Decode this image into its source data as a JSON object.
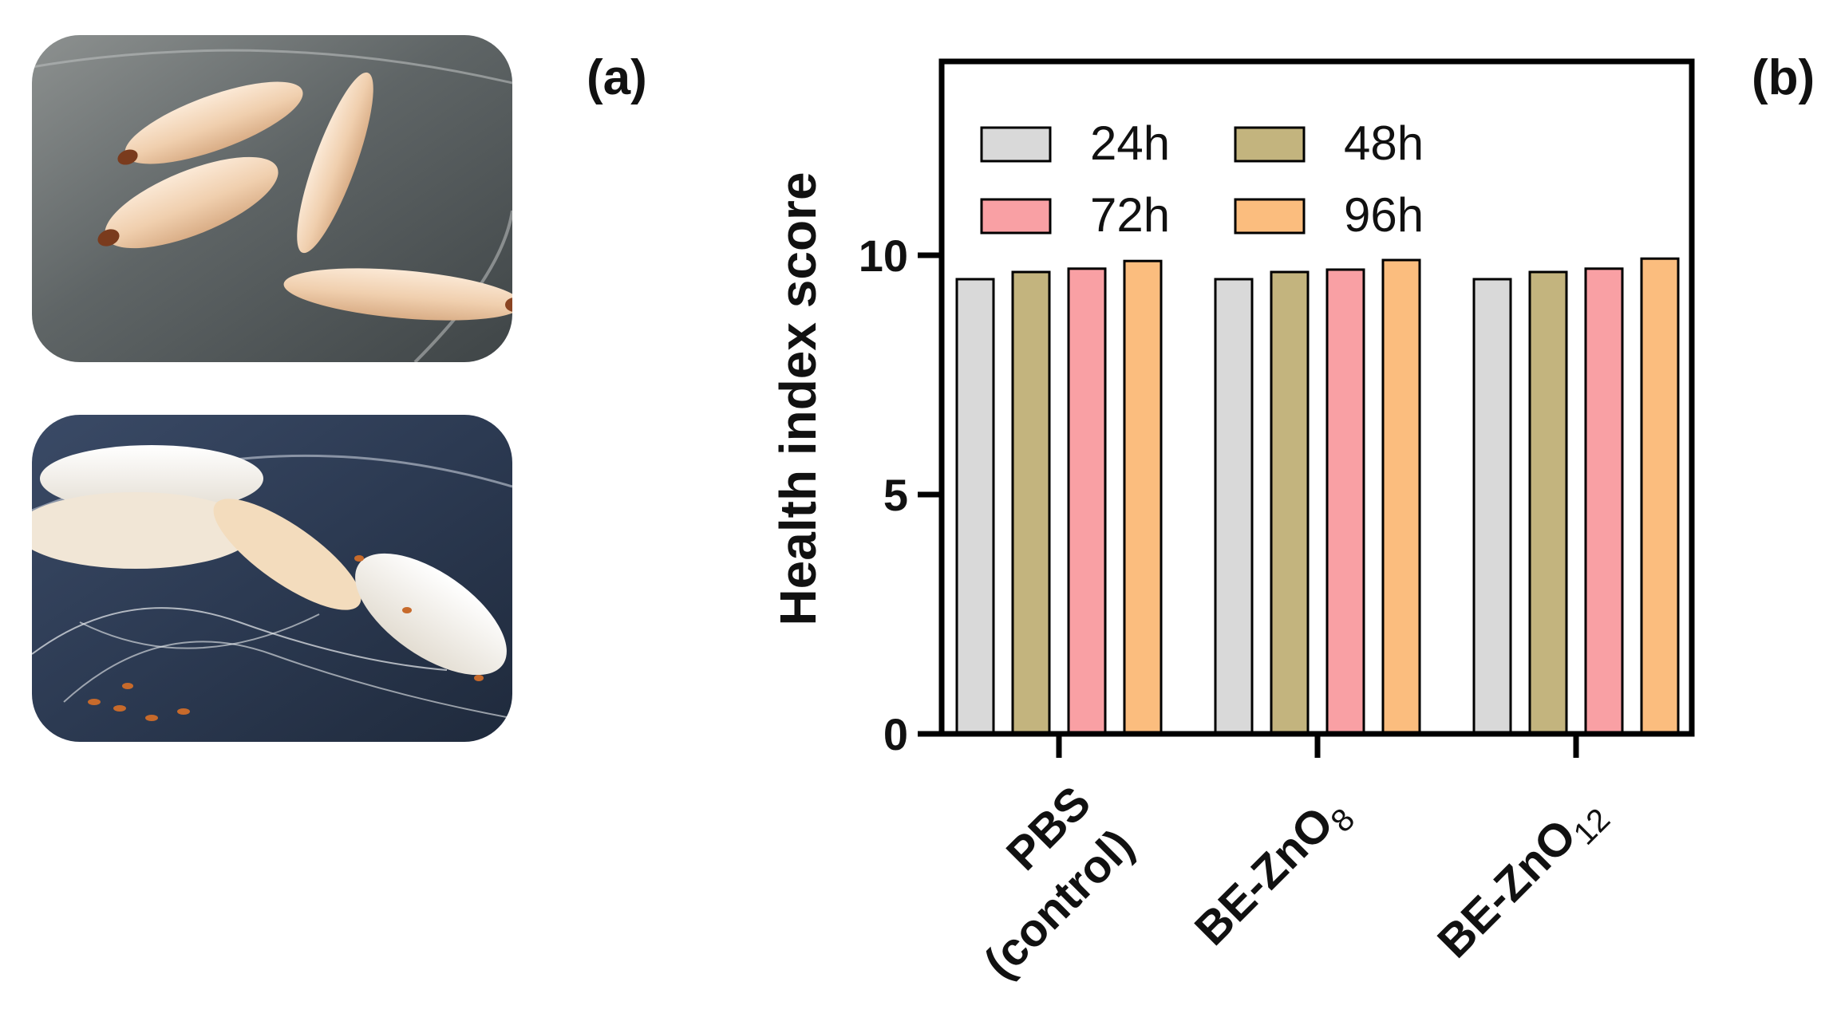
{
  "panels": {
    "a": {
      "label": "(a)"
    },
    "b": {
      "label": "(b)"
    }
  },
  "photos": [
    {
      "subject": "wax moth larvae on petri dish (healthy)"
    },
    {
      "subject": "wax moth larvae with silk cocoons"
    }
  ],
  "chart_data": {
    "type": "bar",
    "title": "",
    "xlabel": "",
    "ylabel": "Health index score",
    "ylim": [
      0,
      10
    ],
    "ytick_labels": [
      "0",
      "5",
      "10"
    ],
    "categories": [
      {
        "lines": [
          "PBS",
          "(control)"
        ]
      },
      {
        "main": "BE-ZnO",
        "sub": "8"
      },
      {
        "main": "BE-ZnO",
        "sub": "12"
      }
    ],
    "series": [
      {
        "name": "24h",
        "color": "#d9d9d9",
        "values": [
          9.5,
          9.5,
          9.5
        ]
      },
      {
        "name": "48h",
        "color": "#c3b47e",
        "values": [
          9.65,
          9.65,
          9.65
        ]
      },
      {
        "name": "72h",
        "color": "#f9a0a4",
        "values": [
          9.72,
          9.7,
          9.72
        ]
      },
      {
        "name": "96h",
        "color": "#fbbd7e",
        "values": [
          9.88,
          9.9,
          9.93
        ]
      }
    ],
    "grid": false,
    "legend": {
      "position": "top-left",
      "columns": 2
    }
  }
}
